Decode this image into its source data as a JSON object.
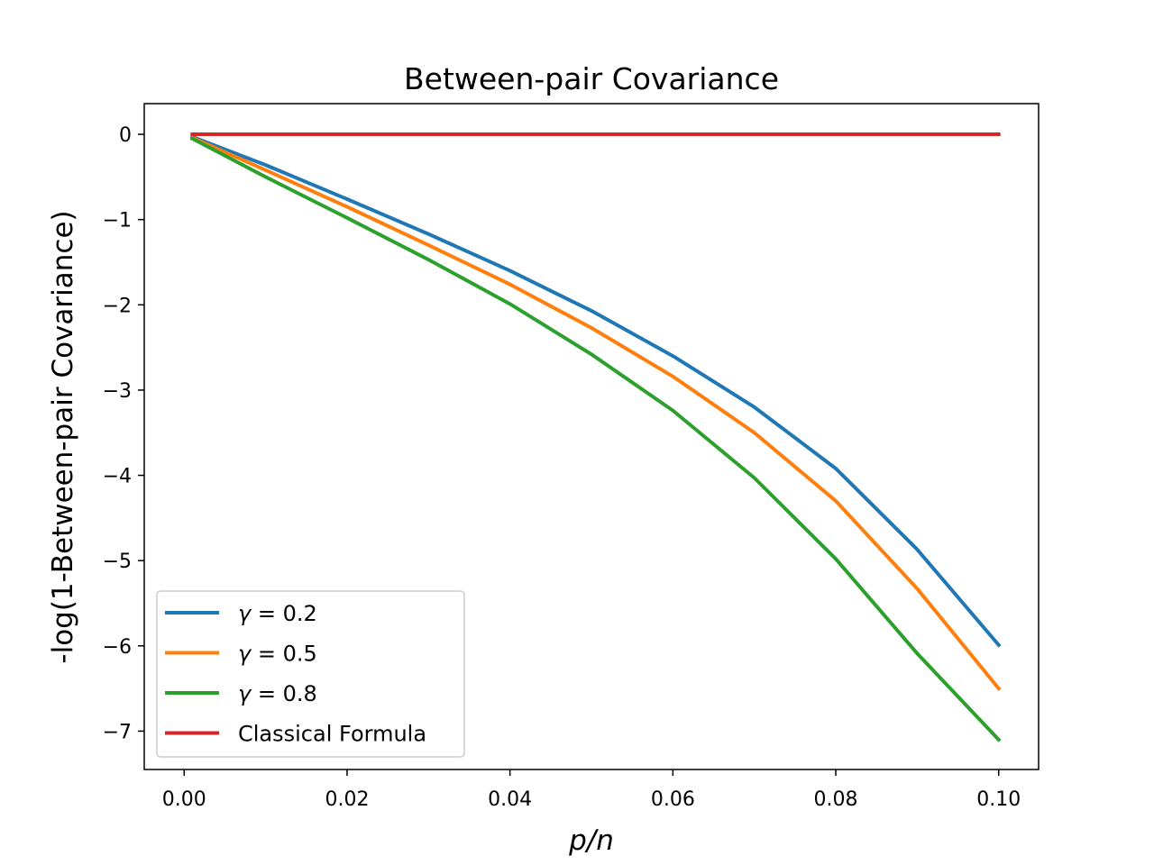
{
  "chart_data": {
    "type": "line",
    "title": "Between-pair Covariance",
    "xlabel": "p/n",
    "ylabel": "-log(1-Between-pair Covariance)",
    "xlim": [
      -0.0049,
      0.1049
    ],
    "ylim": [
      -7.45,
      0.36
    ],
    "x_ticks": [
      0.0,
      0.02,
      0.04,
      0.06,
      0.08,
      0.1
    ],
    "x_tick_labels": [
      "0.00",
      "0.02",
      "0.04",
      "0.06",
      "0.08",
      "0.10"
    ],
    "y_ticks": [
      0,
      -1,
      -2,
      -3,
      -4,
      -5,
      -6,
      -7
    ],
    "y_tick_labels": [
      "0",
      "−1",
      "−2",
      "−3",
      "−4",
      "−5",
      "−6",
      "−7"
    ],
    "legend_location": "lower-left",
    "series": [
      {
        "name": "γ = 0.2",
        "legend_symbol": "γ",
        "legend_rest": " = 0.2",
        "color": "#1f77b4",
        "x": [
          0.001,
          0.01,
          0.02,
          0.03,
          0.04,
          0.05,
          0.06,
          0.07,
          0.08,
          0.09,
          0.1
        ],
        "y": [
          -0.03,
          -0.36,
          -0.76,
          -1.17,
          -1.6,
          -2.07,
          -2.6,
          -3.2,
          -3.92,
          -4.87,
          -5.99
        ]
      },
      {
        "name": "γ = 0.5",
        "legend_symbol": "γ",
        "legend_rest": " = 0.5",
        "color": "#ff7f0e",
        "x": [
          0.001,
          0.01,
          0.02,
          0.03,
          0.04,
          0.05,
          0.06,
          0.07,
          0.08,
          0.09,
          0.1
        ],
        "y": [
          -0.04,
          -0.42,
          -0.85,
          -1.3,
          -1.76,
          -2.27,
          -2.84,
          -3.5,
          -4.3,
          -5.33,
          -6.5
        ]
      },
      {
        "name": "γ = 0.8",
        "legend_symbol": "γ",
        "legend_rest": " = 0.8",
        "color": "#2ca02c",
        "x": [
          0.001,
          0.01,
          0.02,
          0.03,
          0.04,
          0.05,
          0.06,
          0.07,
          0.08,
          0.09,
          0.1
        ],
        "y": [
          -0.05,
          -0.5,
          -0.98,
          -1.47,
          -1.99,
          -2.58,
          -3.24,
          -4.03,
          -4.98,
          -6.09,
          -7.1
        ]
      },
      {
        "name": "Classical Formula",
        "legend_symbol": "",
        "legend_rest": "Classical Formula",
        "color": "#d62728",
        "x": [
          0.001,
          0.1
        ],
        "y": [
          0,
          0
        ]
      }
    ]
  }
}
